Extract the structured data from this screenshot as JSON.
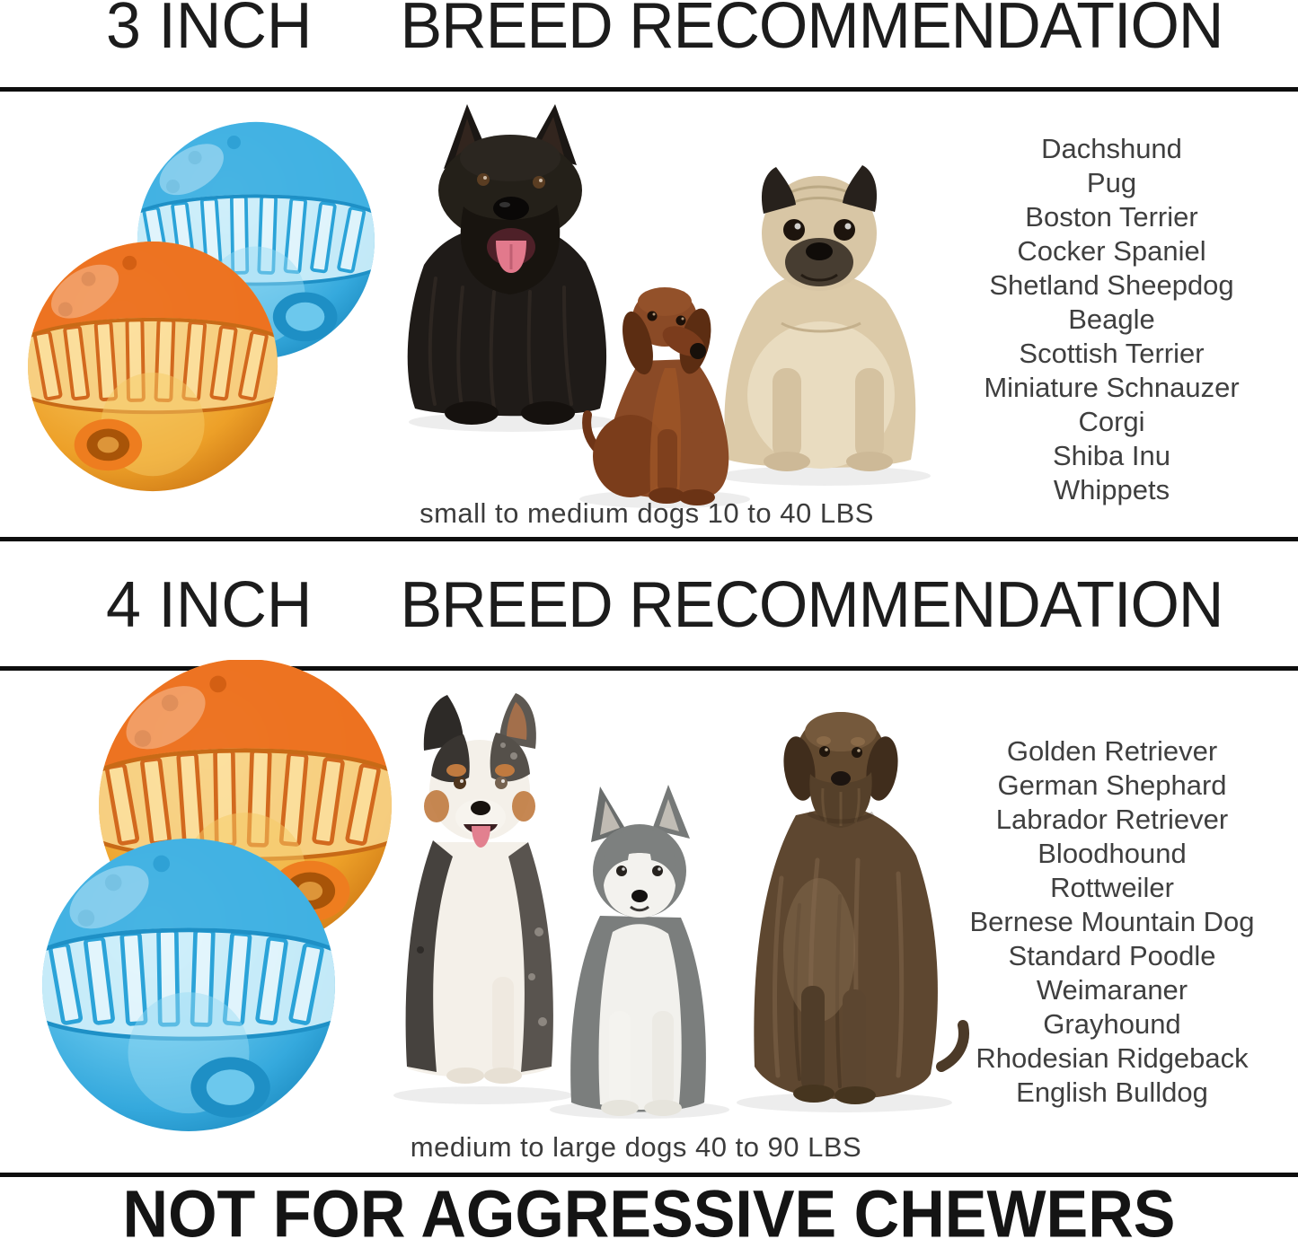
{
  "section_3inch": {
    "size_label": "3 INCH",
    "header": "BREED RECOMMENDATION",
    "breeds": [
      "Dachshund",
      "Pug",
      "Boston Terrier",
      "Cocker Spaniel",
      "Shetland Sheepdog",
      "Beagle",
      "Scottish Terrier",
      "Miniature Schnauzer",
      "Corgi",
      "Shiba Inu",
      "Whippets"
    ],
    "caption": "small to medium dogs 10 to 40 LBS"
  },
  "section_4inch": {
    "size_label": "4 INCH",
    "header": "BREED RECOMMENDATION",
    "breeds": [
      "Golden Retriever",
      "German Shephard",
      "Labrador Retriever",
      "Bloodhound",
      "Rottweiler",
      "Bernese Mountain Dog",
      "Standard Poodle",
      "Weimaraner",
      "Grayhound",
      "Rhodesian Ridgeback",
      "English Bulldog"
    ],
    "caption": "medium to large dogs 40 to 90 LBS"
  },
  "footer": {
    "warning": "NOT FOR AGGRESSIVE CHEWERS"
  },
  "images": {
    "balls_3inch": "blue-and-orange-treat-ball-photo",
    "balls_4inch": "orange-and-blue-treat-ball-photo-large",
    "dogs_3inch": [
      "scottish-terrier-photo",
      "dachshund-photo",
      "pug-photo"
    ],
    "dogs_4inch": [
      "australian-shepherd-photo",
      "siberian-husky-photo",
      "wirehaired-pointing-griffon-photo"
    ]
  },
  "colors": {
    "ball_blue": "#45b6e6",
    "ball_blue_band": "#cfeffa",
    "ball_orange_cap": "#ec7120",
    "ball_amber": "#f0a92f",
    "divider": "#0e0e0e",
    "heading_text": "#1c1c1c",
    "list_text": "#3f3f3f"
  }
}
